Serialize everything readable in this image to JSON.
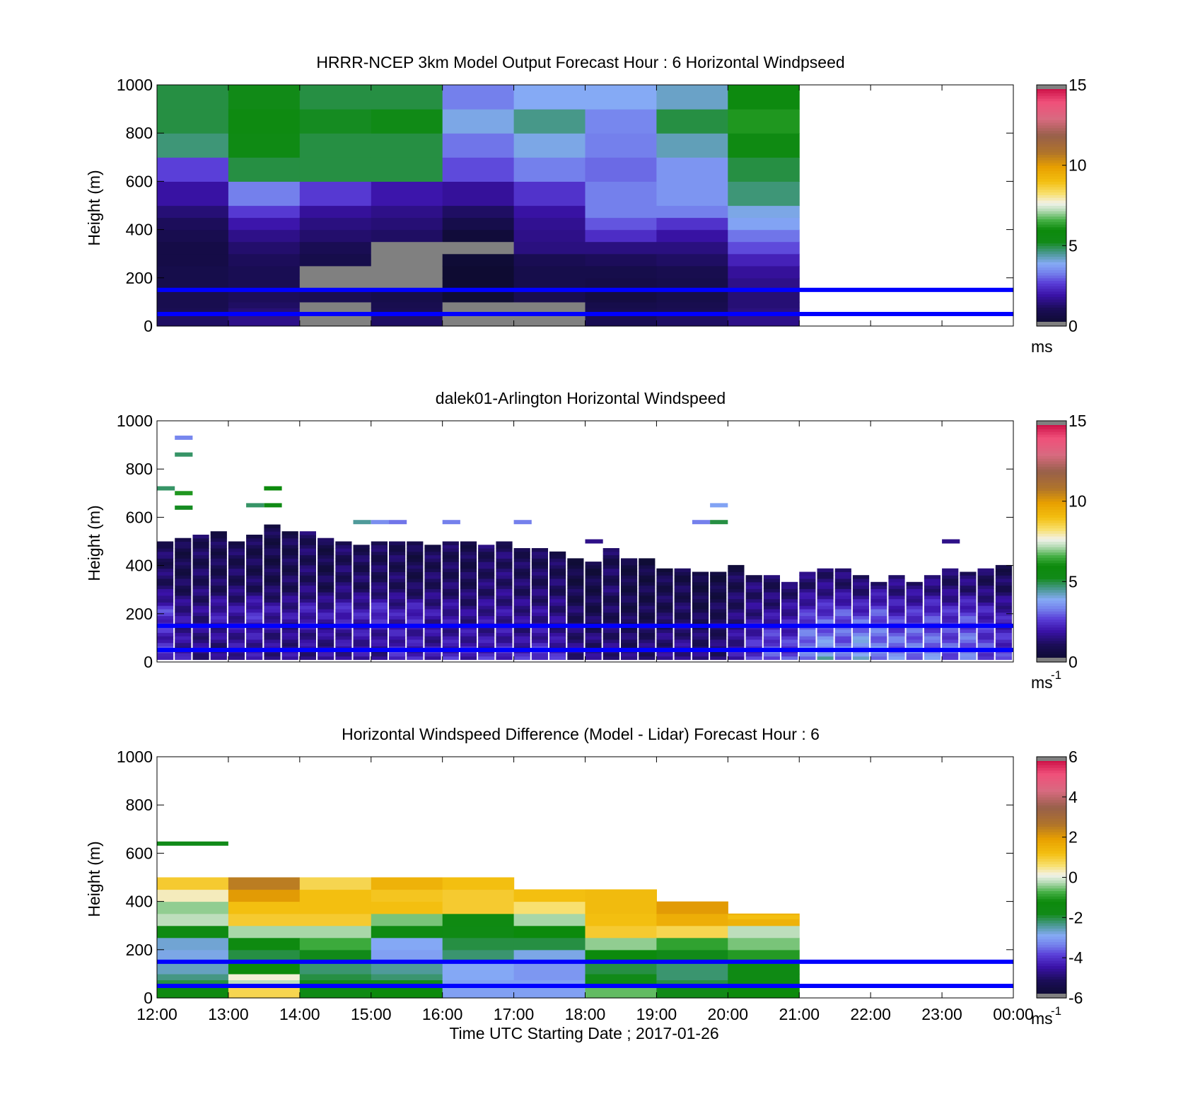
{
  "colors": {
    "background": "#ffffff",
    "axes": "#000000",
    "reference_lines": "#0000ff",
    "out_of_range": "#808080"
  },
  "x_tick_labels": [
    "12:00",
    "13:00",
    "14:00",
    "15:00",
    "16:00",
    "17:00",
    "18:00",
    "19:00",
    "20:00",
    "21:00",
    "22:00",
    "23:00",
    "00:00"
  ],
  "x_axis_label": "Time UTC  Starting Date ; 2017-01-26",
  "y_axis_label": "Height (m)",
  "reference_heights_m": [
    150,
    50
  ],
  "chart_data": [
    {
      "type": "heatmap",
      "title": "HRRR-NCEP 3km Model Output   Forecast Hour : 6 Horizontal Windpseed",
      "ylabel": "Height (m)",
      "ylim": [
        0,
        1000
      ],
      "yticks": [
        "0",
        "200",
        "400",
        "600",
        "800",
        "1000"
      ],
      "xlim_hours": [
        12,
        24
      ],
      "colorbar": {
        "ticks": [
          "0",
          "5",
          "10",
          "15"
        ],
        "range": [
          0,
          15
        ],
        "unit": "ms",
        "unit_sup": ""
      },
      "cell_hours": 1,
      "levels_m": [
        25,
        50,
        75,
        100,
        150,
        200,
        250,
        300,
        350,
        400,
        450,
        500,
        600,
        700,
        800,
        900,
        1000
      ],
      "columns": [
        {
          "start": "12:00",
          "speeds": [
            1.2,
            1.0,
            0.9,
            0.9,
            0.8,
            0.8,
            0.7,
            0.7,
            0.9,
            1.1,
            1.4,
            1.9,
            2.7,
            4.7,
            5.0,
            5.0
          ]
        },
        {
          "start": "13:00",
          "speeds": [
            1.6,
            1.4,
            1.2,
            1.1,
            1.0,
            1.0,
            1.1,
            1.3,
            1.6,
            2.0,
            2.6,
            3.3,
            5.0,
            5.5,
            5.7,
            5.3
          ]
        },
        {
          "start": "14:00",
          "speeds": [
            0,
            0,
            0,
            1.0,
            0,
            0,
            0.8,
            1.0,
            1.3,
            1.5,
            1.8,
            2.6,
            5.0,
            5.0,
            5.2,
            5.0
          ]
        },
        {
          "start": "15:00",
          "speeds": [
            1.2,
            1.0,
            0.9,
            0.8,
            0,
            0,
            0,
            0,
            1.2,
            1.4,
            1.6,
            2.0,
            5.0,
            5.0,
            5.4,
            5.0
          ]
        },
        {
          "start": "16:00",
          "speeds": [
            0,
            0,
            0,
            0.3,
            0.2,
            0.2,
            0.3,
            0,
            0.4,
            0.8,
            1.2,
            1.8,
            2.8,
            3.2,
            4.0,
            3.3
          ]
        },
        {
          "start": "17:00",
          "speeds": [
            0,
            0,
            0,
            0.9,
            0.8,
            0.8,
            1.0,
            1.5,
            1.6,
            1.7,
            1.9,
            2.5,
            3.3,
            4.0,
            4.6,
            3.9
          ]
        },
        {
          "start": "18:00",
          "speeds": [
            1.0,
            0.9,
            0.8,
            0.6,
            0.7,
            0.8,
            1.1,
            1.5,
            2.4,
            2.9,
            3.3,
            3.3,
            3.1,
            3.3,
            3.4,
            3.9
          ]
        },
        {
          "start": "19:00",
          "speeds": [
            1.2,
            1.0,
            0.9,
            0.8,
            0.8,
            0.9,
            1.2,
            1.5,
            1.9,
            2.5,
            3.3,
            3.6,
            3.6,
            4.3,
            5.0,
            4.2
          ]
        },
        {
          "start": "20:00",
          "speeds": [
            1.6,
            1.5,
            1.4,
            1.4,
            1.6,
            1.8,
            2.2,
            2.8,
            3.2,
            3.8,
            4.0,
            4.7,
            5.0,
            5.6,
            6.2,
            5.8
          ]
        }
      ]
    },
    {
      "type": "heatmap",
      "title": "dalek01-Arlington  Horizontal Windspeed",
      "ylabel": "Height (m)",
      "ylim": [
        0,
        1000
      ],
      "yticks": [
        "0",
        "200",
        "400",
        "600",
        "800",
        "1000"
      ],
      "xlim_hours": [
        12,
        24
      ],
      "colorbar": {
        "ticks": [
          "0",
          "5",
          "10",
          "15"
        ],
        "range": [
          0,
          15
        ],
        "unit": "ms",
        "unit_sup": "-1"
      },
      "column_hours": 0.25,
      "note_profile": "approximate mean windspeed per 15-min column at 0-100 m, 100-200 m, 200-300 m, 300-400 m, top of return (m)",
      "columns": [
        {
          "start": "12:00",
          "speeds": [
            2.6,
            2.2,
            2.6,
            1.3
          ],
          "top_m": 500
        },
        {
          "start": "12:15",
          "speeds": [
            2.0,
            1.7,
            1.8,
            1.0
          ],
          "top_m": 510
        },
        {
          "start": "12:30",
          "speeds": [
            1.6,
            1.6,
            1.6,
            1.2
          ],
          "top_m": 520
        },
        {
          "start": "12:45",
          "speeds": [
            1.4,
            1.6,
            2.1,
            1.1
          ],
          "top_m": 540
        },
        {
          "start": "13:00",
          "speeds": [
            1.9,
            1.8,
            1.9,
            1.2
          ],
          "top_m": 500
        },
        {
          "start": "13:15",
          "speeds": [
            1.8,
            1.9,
            2.4,
            1.1
          ],
          "top_m": 520
        },
        {
          "start": "13:30",
          "speeds": [
            1.7,
            1.6,
            2.0,
            1.0
          ],
          "top_m": 560
        },
        {
          "start": "13:45",
          "speeds": [
            1.8,
            1.5,
            1.9,
            1.1
          ],
          "top_m": 540
        },
        {
          "start": "14:00",
          "speeds": [
            1.6,
            1.7,
            2.2,
            1.3
          ],
          "top_m": 530
        },
        {
          "start": "14:15",
          "speeds": [
            1.8,
            1.6,
            2.0,
            1.0
          ],
          "top_m": 510
        },
        {
          "start": "14:30",
          "speeds": [
            1.8,
            1.8,
            2.4,
            1.3
          ],
          "top_m": 490
        },
        {
          "start": "14:45",
          "speeds": [
            1.9,
            1.9,
            2.1,
            1.2
          ],
          "top_m": 480
        },
        {
          "start": "15:00",
          "speeds": [
            1.5,
            1.8,
            2.6,
            1.2
          ],
          "top_m": 500
        },
        {
          "start": "15:15",
          "speeds": [
            2.5,
            2.0,
            2.0,
            1.2
          ],
          "top_m": 500
        },
        {
          "start": "15:30",
          "speeds": [
            2.2,
            1.9,
            2.4,
            1.0
          ],
          "top_m": 490
        },
        {
          "start": "15:45",
          "speeds": [
            2.2,
            1.7,
            1.9,
            1.2
          ],
          "top_m": 480
        },
        {
          "start": "16:00",
          "speeds": [
            2.4,
            1.8,
            1.9,
            1.2
          ],
          "top_m": 490
        },
        {
          "start": "16:15",
          "speeds": [
            2.2,
            1.9,
            1.6,
            1.1
          ],
          "top_m": 500
        },
        {
          "start": "16:30",
          "speeds": [
            2.4,
            1.8,
            1.8,
            1.3
          ],
          "top_m": 480
        },
        {
          "start": "16:45",
          "speeds": [
            2.5,
            1.9,
            1.8,
            1.4
          ],
          "top_m": 490
        },
        {
          "start": "17:00",
          "speeds": [
            2.4,
            1.6,
            1.7,
            1.2
          ],
          "top_m": 470
        },
        {
          "start": "17:15",
          "speeds": [
            2.8,
            1.9,
            1.7,
            1.2
          ],
          "top_m": 460
        },
        {
          "start": "17:30",
          "speeds": [
            2.4,
            1.7,
            1.6,
            1.2
          ],
          "top_m": 450
        },
        {
          "start": "17:45",
          "speeds": [
            1.6,
            1.4,
            1.1,
            0.8
          ],
          "top_m": 420
        },
        {
          "start": "18:00",
          "speeds": [
            1.5,
            1.3,
            0.9,
            0.8
          ],
          "top_m": 410
        },
        {
          "start": "18:15",
          "speeds": [
            1.6,
            1.4,
            1.0,
            1.2
          ],
          "top_m": 460
        },
        {
          "start": "18:30",
          "speeds": [
            1.4,
            1.1,
            0.9,
            0.8
          ],
          "top_m": 420
        },
        {
          "start": "18:45",
          "speeds": [
            1.5,
            1.2,
            0.9,
            0.8
          ],
          "top_m": 420
        },
        {
          "start": "19:00",
          "speeds": [
            1.6,
            1.4,
            1.0,
            0.9
          ],
          "top_m": 380
        },
        {
          "start": "19:15",
          "speeds": [
            1.8,
            1.5,
            1.1,
            0.9
          ],
          "top_m": 380
        },
        {
          "start": "19:30",
          "speeds": [
            1.5,
            1.2,
            0.9,
            0.7
          ],
          "top_m": 370
        },
        {
          "start": "19:45",
          "speeds": [
            1.4,
            1.2,
            1.0,
            0.7
          ],
          "top_m": 370
        },
        {
          "start": "20:00",
          "speeds": [
            2.0,
            1.7,
            1.3,
            1.0
          ],
          "top_m": 390
        },
        {
          "start": "20:15",
          "speeds": [
            2.6,
            2.2,
            1.6,
            1.3
          ],
          "top_m": 350
        },
        {
          "start": "20:30",
          "speeds": [
            3.0,
            2.6,
            1.7,
            1.1
          ],
          "top_m": 360
        },
        {
          "start": "20:45",
          "speeds": [
            2.8,
            2.4,
            1.9,
            1.2
          ],
          "top_m": 330
        },
        {
          "start": "21:00",
          "speeds": [
            3.4,
            3.2,
            2.4,
            1.4
          ],
          "top_m": 370
        },
        {
          "start": "21:15",
          "speeds": [
            4.2,
            3.3,
            2.6,
            1.5
          ],
          "top_m": 380
        },
        {
          "start": "21:30",
          "speeds": [
            3.4,
            3.0,
            2.8,
            1.4
          ],
          "top_m": 380
        },
        {
          "start": "21:45",
          "speeds": [
            3.8,
            3.6,
            2.5,
            1.3
          ],
          "top_m": 350
        },
        {
          "start": "22:00",
          "speeds": [
            3.5,
            3.2,
            2.8,
            1.6
          ],
          "top_m": 320
        },
        {
          "start": "22:15",
          "speeds": [
            3.4,
            3.0,
            2.3,
            1.5
          ],
          "top_m": 360
        },
        {
          "start": "22:30",
          "speeds": [
            3.3,
            3.1,
            2.4,
            1.5
          ],
          "top_m": 330
        },
        {
          "start": "22:45",
          "speeds": [
            3.5,
            2.9,
            2.6,
            1.5
          ],
          "top_m": 360
        },
        {
          "start": "23:00",
          "speeds": [
            3.0,
            2.8,
            2.4,
            1.3
          ],
          "top_m": 380
        },
        {
          "start": "23:15",
          "speeds": [
            3.2,
            3.0,
            2.6,
            1.4
          ],
          "top_m": 370
        },
        {
          "start": "23:30",
          "speeds": [
            2.8,
            2.6,
            2.2,
            1.2
          ],
          "top_m": 380
        },
        {
          "start": "23:45",
          "speeds": [
            2.6,
            2.3,
            2.0,
            1.1
          ],
          "top_m": 400
        }
      ],
      "sparse_returns": [
        {
          "time": "12:15",
          "height_m": 860,
          "speed": 4.8
        },
        {
          "time": "12:15",
          "height_m": 930,
          "speed": 3.4
        },
        {
          "time": "12:15",
          "height_m": 700,
          "speed": 6.2
        },
        {
          "time": "12:15",
          "height_m": 640,
          "speed": 5.2
        },
        {
          "time": "12:00",
          "height_m": 720,
          "speed": 4.8
        },
        {
          "time": "13:30",
          "height_m": 720,
          "speed": 6.0
        },
        {
          "time": "13:30",
          "height_m": 650,
          "speed": 5.5
        },
        {
          "time": "13:15",
          "height_m": 650,
          "speed": 4.8
        },
        {
          "time": "14:45",
          "height_m": 580,
          "speed": 4.5
        },
        {
          "time": "15:00",
          "height_m": 580,
          "speed": 3.5
        },
        {
          "time": "15:15",
          "height_m": 580,
          "speed": 3.2
        },
        {
          "time": "16:00",
          "height_m": 580,
          "speed": 3.3
        },
        {
          "time": "17:00",
          "height_m": 580,
          "speed": 3.3
        },
        {
          "time": "19:30",
          "height_m": 580,
          "speed": 3.3
        },
        {
          "time": "19:45",
          "height_m": 580,
          "speed": 5.0
        },
        {
          "time": "19:45",
          "height_m": 650,
          "speed": 3.8
        },
        {
          "time": "18:00",
          "height_m": 500,
          "speed": 1.6
        },
        {
          "time": "23:00",
          "height_m": 500,
          "speed": 1.6
        }
      ]
    },
    {
      "type": "heatmap",
      "title": "Horizontal Windspeed Difference (Model - Lidar) Forecast Hour : 6",
      "ylabel": "Height (m)",
      "ylim": [
        0,
        1000
      ],
      "yticks": [
        "0",
        "200",
        "400",
        "600",
        "800",
        "1000"
      ],
      "xlim_hours": [
        12,
        24
      ],
      "xlabel": "Time UTC  Starting Date ; 2017-01-26",
      "colorbar": {
        "ticks": [
          "-6",
          "-4",
          "-2",
          "0",
          "2",
          "4",
          "6"
        ],
        "range": [
          -6,
          6
        ],
        "unit": "ms",
        "unit_sup": "-1"
      },
      "cell_hours": 1,
      "levels_m": [
        25,
        50,
        75,
        100,
        150,
        200,
        250,
        300,
        350,
        400,
        450,
        500
      ],
      "columns": [
        {
          "start": "12:00",
          "diffs": [
            -1.4,
            -2.0,
            -2.3,
            -2.6,
            -2.8,
            -2.7,
            -1.5,
            -0.2,
            -0.4,
            0.3,
            1.0
          ]
        },
        {
          "start": "13:00",
          "diffs": [
            0.8,
            -0.2,
            0.2,
            -1.2,
            -2.0,
            -1.4,
            -0.3,
            1.0,
            1.2,
            2.0,
            2.5
          ]
        },
        {
          "start": "14:00",
          "diffs": [
            -1.6,
            -1.8,
            -2.0,
            -2.2,
            -1.8,
            -0.8,
            -0.3,
            1.0,
            1.2,
            1.2,
            0.8
          ]
        },
        {
          "start": "15:00",
          "diffs": [
            -1.2,
            -1.8,
            -2.2,
            -2.4,
            -3.0,
            -2.9,
            -1.5,
            -0.5,
            1.2,
            1.1,
            1.5
          ]
        },
        {
          "start": "16:00",
          "diffs": [
            -3.0,
            -3.0,
            -2.9,
            -2.9,
            -2.2,
            -2.0,
            -1.6,
            -1.5,
            1.0,
            1.0,
            1.2
          ]
        },
        {
          "start": "17:00",
          "diffs": [
            -3.0,
            -3.0,
            -3.1,
            -3.1,
            -2.8,
            -2.0,
            -1.2,
            -0.3,
            0.6,
            1.2,
            null
          ]
        },
        {
          "start": "18:00",
          "diffs": [
            -0.6,
            -1.6,
            -1.8,
            -2.0,
            -1.2,
            -0.4,
            1.0,
            1.2,
            1.3,
            1.3,
            null
          ]
        },
        {
          "start": "19:00",
          "diffs": [
            -1.8,
            -2.0,
            -2.2,
            -2.2,
            -1.8,
            -0.9,
            0.8,
            1.6,
            2.0,
            null,
            null
          ]
        },
        {
          "start": "20:00",
          "diffs": [
            -1.2,
            -1.4,
            -1.6,
            -1.6,
            -1.0,
            -0.5,
            -0.2,
            1.5,
            null,
            null,
            null
          ]
        }
      ],
      "sparse_returns": [
        {
          "time": "12:00",
          "height_m": 640,
          "speed": -1.8,
          "span_hours": 1
        },
        {
          "time": "16:00",
          "height_m": 490,
          "speed": 1.2,
          "span_hours": 1
        },
        {
          "time": "20:00",
          "height_m": 335,
          "speed": 1.2,
          "span_hours": 1
        }
      ]
    }
  ]
}
